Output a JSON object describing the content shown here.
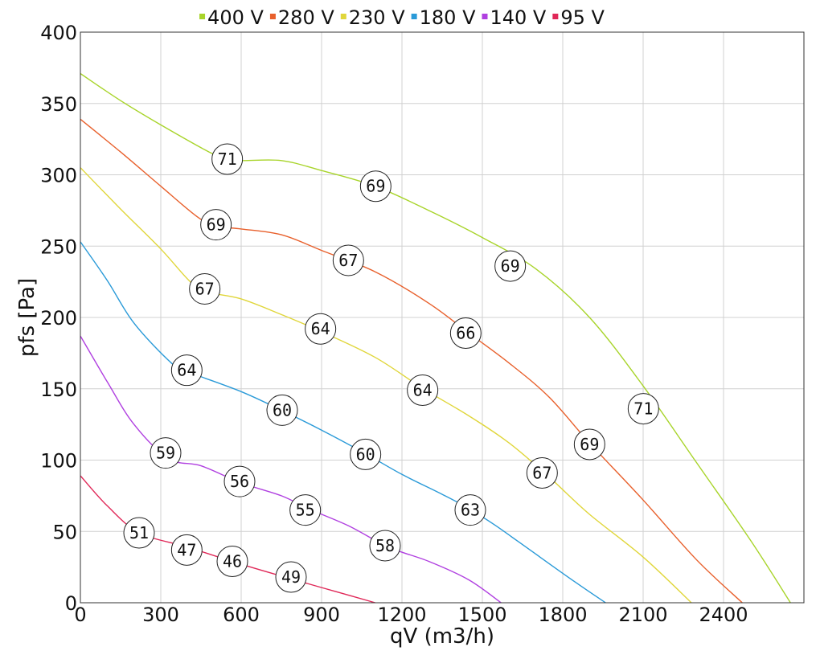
{
  "chart_data": {
    "type": "line",
    "xlabel": "qV (m3/h)",
    "ylabel": "pfs [Pa]",
    "xlim": [
      0,
      2700
    ],
    "ylim": [
      0,
      400
    ],
    "x_ticks": [
      0,
      300,
      600,
      900,
      1200,
      1500,
      1800,
      2100,
      2400
    ],
    "y_ticks": [
      0,
      50,
      100,
      150,
      200,
      250,
      300,
      350,
      400
    ],
    "grid": true,
    "legend_position": "top",
    "series": [
      {
        "name": "400 V",
        "color": "#a8d42a",
        "points": [
          [
            0,
            371
          ],
          [
            150,
            352
          ],
          [
            300,
            335
          ],
          [
            480,
            316
          ],
          [
            540,
            312
          ],
          [
            600,
            310
          ],
          [
            750,
            310
          ],
          [
            900,
            303
          ],
          [
            1100,
            292
          ],
          [
            1300,
            275
          ],
          [
            1500,
            256
          ],
          [
            1700,
            234
          ],
          [
            1900,
            200
          ],
          [
            2100,
            152
          ],
          [
            2300,
            98
          ],
          [
            2500,
            44
          ],
          [
            2650,
            0
          ]
        ],
        "labels": [
          {
            "x": 548,
            "y": 311,
            "text": "71"
          },
          {
            "x": 1102,
            "y": 292,
            "text": "69"
          },
          {
            "x": 1604,
            "y": 236,
            "text": "69"
          },
          {
            "x": 2101,
            "y": 136,
            "text": "71"
          }
        ]
      },
      {
        "name": "280 V",
        "color": "#e8602c",
        "points": [
          [
            0,
            339
          ],
          [
            150,
            316
          ],
          [
            300,
            292
          ],
          [
            440,
            270
          ],
          [
            510,
            264
          ],
          [
            600,
            262
          ],
          [
            750,
            258
          ],
          [
            900,
            247
          ],
          [
            1100,
            232
          ],
          [
            1300,
            210
          ],
          [
            1450,
            189
          ],
          [
            1600,
            168
          ],
          [
            1750,
            144
          ],
          [
            1900,
            112
          ],
          [
            2100,
            72
          ],
          [
            2300,
            30
          ],
          [
            2470,
            0
          ]
        ],
        "labels": [
          {
            "x": 506,
            "y": 265,
            "text": "69"
          },
          {
            "x": 1000,
            "y": 240,
            "text": "67"
          },
          {
            "x": 1438,
            "y": 189,
            "text": "66"
          },
          {
            "x": 1900,
            "y": 111,
            "text": "69"
          }
        ]
      },
      {
        "name": "230 V",
        "color": "#e0d63a",
        "points": [
          [
            0,
            305
          ],
          [
            150,
            276
          ],
          [
            300,
            248
          ],
          [
            410,
            225
          ],
          [
            470,
            218
          ],
          [
            600,
            213
          ],
          [
            750,
            202
          ],
          [
            900,
            190
          ],
          [
            1100,
            172
          ],
          [
            1280,
            150
          ],
          [
            1450,
            131
          ],
          [
            1600,
            112
          ],
          [
            1750,
            88
          ],
          [
            1900,
            62
          ],
          [
            2100,
            32
          ],
          [
            2280,
            0
          ]
        ],
        "labels": [
          {
            "x": 464,
            "y": 220,
            "text": "67"
          },
          {
            "x": 896,
            "y": 192,
            "text": "64"
          },
          {
            "x": 1277,
            "y": 149,
            "text": "64"
          },
          {
            "x": 1723,
            "y": 91,
            "text": "67"
          }
        ]
      },
      {
        "name": "180 V",
        "color": "#2a9ad8",
        "points": [
          [
            0,
            253
          ],
          [
            100,
            226
          ],
          [
            200,
            196
          ],
          [
            340,
            168
          ],
          [
            400,
            162
          ],
          [
            600,
            148
          ],
          [
            750,
            135
          ],
          [
            900,
            121
          ],
          [
            1050,
            106
          ],
          [
            1200,
            90
          ],
          [
            1350,
            76
          ],
          [
            1450,
            66
          ],
          [
            1550,
            54
          ],
          [
            1700,
            34
          ],
          [
            1850,
            14
          ],
          [
            1960,
            0
          ]
        ],
        "labels": [
          {
            "x": 397,
            "y": 163,
            "text": "64"
          },
          {
            "x": 753,
            "y": 135,
            "text": "60"
          },
          {
            "x": 1064,
            "y": 104,
            "text": "60"
          },
          {
            "x": 1455,
            "y": 65,
            "text": "63"
          }
        ]
      },
      {
        "name": "140 V",
        "color": "#b040e0",
        "points": [
          [
            0,
            187
          ],
          [
            100,
            155
          ],
          [
            200,
            125
          ],
          [
            330,
            101
          ],
          [
            450,
            96
          ],
          [
            600,
            84
          ],
          [
            750,
            75
          ],
          [
            850,
            66
          ],
          [
            1000,
            54
          ],
          [
            1150,
            39
          ],
          [
            1300,
            29
          ],
          [
            1450,
            16
          ],
          [
            1570,
            0
          ]
        ],
        "labels": [
          {
            "x": 318,
            "y": 105,
            "text": "59"
          },
          {
            "x": 594,
            "y": 85,
            "text": "56"
          },
          {
            "x": 839,
            "y": 65,
            "text": "55"
          },
          {
            "x": 1137,
            "y": 40,
            "text": "58"
          }
        ]
      },
      {
        "name": "95 V",
        "color": "#e02858",
        "points": [
          [
            0,
            89
          ],
          [
            100,
            68
          ],
          [
            220,
            49
          ],
          [
            400,
            39
          ],
          [
            600,
            27
          ],
          [
            800,
            16
          ],
          [
            950,
            8
          ],
          [
            1100,
            0
          ]
        ],
        "labels": [
          {
            "x": 219,
            "y": 49,
            "text": "51"
          },
          {
            "x": 397,
            "y": 37,
            "text": "47"
          },
          {
            "x": 567,
            "y": 29,
            "text": "46"
          },
          {
            "x": 786,
            "y": 18,
            "text": "49"
          }
        ]
      }
    ]
  }
}
